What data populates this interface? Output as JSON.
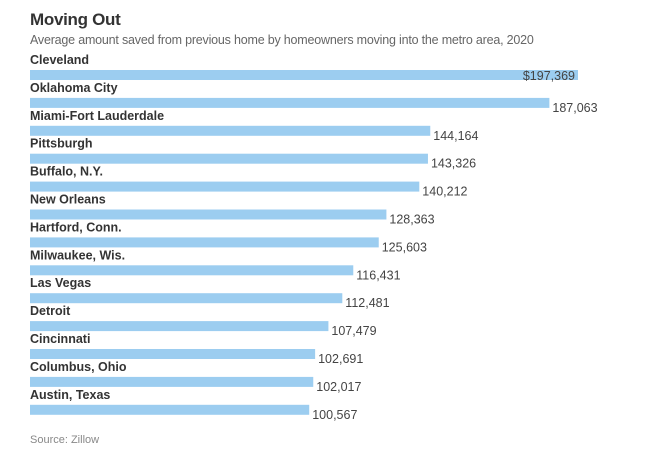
{
  "chart_data": {
    "type": "bar",
    "orientation": "horizontal",
    "title": "Moving Out",
    "subtitle": "Average amount saved from previous home by homeowners moving into the metro area, 2020",
    "xlabel": "",
    "ylabel": "",
    "unit_prefix_first": "$",
    "categories": [
      "Cleveland",
      "Oklahoma City",
      "Miami-Fort Lauderdale",
      "Pittsburgh",
      "Buffalo, N.Y.",
      "New Orleans",
      "Hartford, Conn.",
      "Milwaukee, Wis.",
      "Las Vegas",
      "Detroit",
      "Cincinnati",
      "Columbus, Ohio",
      "Austin, Texas"
    ],
    "values": [
      197369,
      187063,
      144164,
      143326,
      140212,
      128363,
      125603,
      116431,
      112481,
      107479,
      102691,
      102017,
      100567
    ],
    "value_labels": [
      "$197,369",
      "187,063",
      "144,164",
      "143,326",
      "140,212",
      "128,363",
      "125,603",
      "116,431",
      "112,481",
      "107,479",
      "102,691",
      "102,017",
      "100,567"
    ],
    "xlim": [
      0,
      197369
    ],
    "grid": false,
    "legend": "none",
    "bar_color": "#9ccdf0",
    "source": "Source: Zillow"
  }
}
